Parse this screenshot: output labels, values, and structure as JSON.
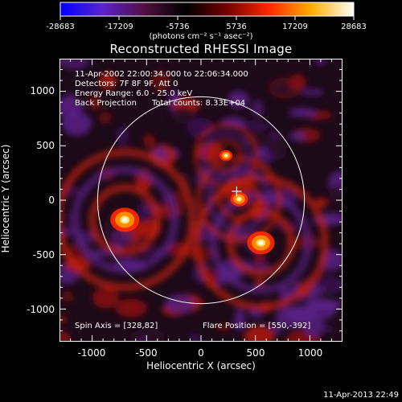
{
  "colorbar": {
    "ticks": [
      "-28683",
      "-17209",
      "-5736",
      "5736",
      "17209",
      "28683"
    ],
    "units": "(photons cm⁻² s⁻¹ asec⁻²)",
    "range": [
      -28683,
      28683
    ],
    "colormap": [
      "#0000ff",
      "#5a22d0",
      "#501040",
      "#000000",
      "#7a0000",
      "#ff2a00",
      "#ffb000",
      "#ffffff"
    ]
  },
  "plot": {
    "title": "Reconstructed RHESSI Image",
    "info_lines": [
      "11-Apr-2002 22:00:34.000 to 22:06:34.000",
      "Detectors: 7F 8F 9F, Att 0",
      "Energy Range: 6.0 - 25.0 keV",
      "Back Projection      Total counts: 8.33E+04"
    ],
    "spin_axis": "Spin Axis = [328,82]",
    "flare_position": "Flare Position = [550,-392]",
    "xlabel": "Heliocentric X (arcsec)",
    "ylabel": "Heliocentric Y (arcsec)",
    "xticks": [
      "-1000",
      "-500",
      "0",
      "500",
      "1000"
    ],
    "yticks": [
      "1000",
      "500",
      "0",
      "-500",
      "-1000"
    ],
    "xlim": [
      -1300,
      1300
    ],
    "ylim": [
      -1300,
      1300
    ],
    "solar_limb_radius": 950,
    "spin_axis_marker": [
      328,
      82
    ],
    "sources": [
      {
        "x": -700,
        "y": -180,
        "peak": 1.0
      },
      {
        "x": 550,
        "y": -392,
        "peak": 0.95
      },
      {
        "x": 350,
        "y": 10,
        "peak": 0.6
      },
      {
        "x": 230,
        "y": 410,
        "peak": 0.45
      }
    ]
  },
  "footer": {
    "timestamp": "11-Apr-2013 22:49"
  }
}
